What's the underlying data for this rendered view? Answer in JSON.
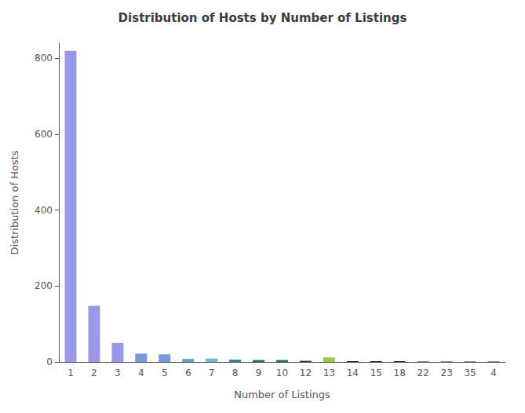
{
  "chart_data": {
    "type": "bar",
    "title": "Distribution of Hosts by Number of Listings",
    "xlabel": "Number of Listings",
    "ylabel": "Distribution of Hosts",
    "categories": [
      "1",
      "2",
      "3",
      "4",
      "5",
      "6",
      "7",
      "8",
      "9",
      "10",
      "12",
      "13",
      "14",
      "15",
      "18",
      "22",
      "23",
      "35",
      "4"
    ],
    "values": [
      820,
      148,
      50,
      22,
      20,
      8,
      9,
      6,
      5,
      5,
      3,
      12,
      2,
      2,
      2,
      1,
      1,
      1,
      1
    ],
    "colors": [
      "#9999e8",
      "#9999e8",
      "#9999e8",
      "#7799dd",
      "#7799dd",
      "#55aacc",
      "#66bbcc",
      "#228888",
      "#117755",
      "#117755",
      "#114433",
      "#99cc44",
      "#111111",
      "#111111",
      "#111111",
      "#111111",
      "#111111",
      "#111111",
      "#111111"
    ],
    "ylim": [
      0,
      840
    ],
    "yticks": [
      0,
      200,
      400,
      600,
      800
    ],
    "grid": false
  }
}
